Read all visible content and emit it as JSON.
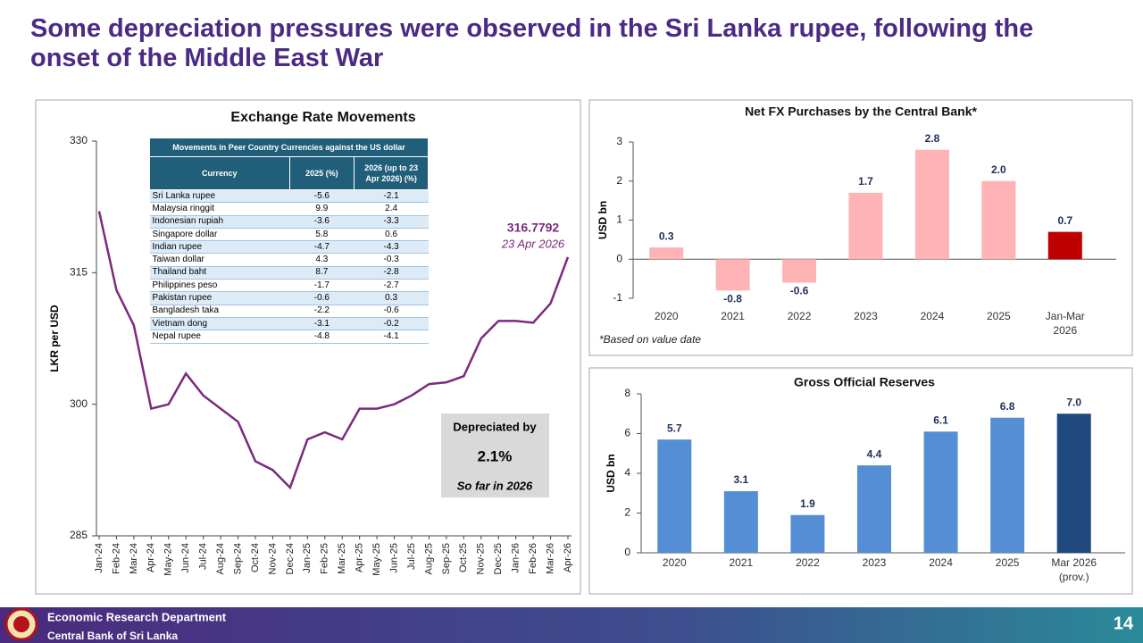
{
  "title": "Some depreciation pressures were observed in the Sri Lanka rupee, following the onset of the Middle East War",
  "footer": {
    "department": "Economic Research Department",
    "bank": "Central Bank of Sri Lanka",
    "page": "14"
  },
  "chart_data": [
    {
      "type": "line",
      "title": "Exchange Rate Movements",
      "y_label": "LKR per USD",
      "color": "#7b2a7e",
      "categories": [
        "Jan-24",
        "Feb-24",
        "Mar-24",
        "Apr-24",
        "May-24",
        "Jun-24",
        "Jul-24",
        "Aug-24",
        "Sep-24",
        "Oct-24",
        "Nov-24",
        "Dec-24",
        "Jan-25",
        "Feb-25",
        "Mar-25",
        "Apr-25",
        "May-25",
        "Jun-25",
        "Jul-25",
        "Aug-25",
        "Sep-25",
        "Oct-25",
        "Nov-25",
        "Dec-25",
        "Jan-26",
        "Feb-26",
        "Mar-26",
        "Apr-26"
      ],
      "values": [
        322,
        313,
        309,
        299.5,
        300,
        303.5,
        301,
        299.5,
        298,
        293.5,
        292.5,
        290.5,
        296,
        296.8,
        296,
        299.5,
        299.5,
        300,
        301,
        302.3,
        302.5,
        303.2,
        307.5,
        309.5,
        309.5,
        309.3,
        311.5,
        316.7792
      ],
      "ylim": [
        285,
        330
      ],
      "yticks": [
        285,
        300,
        315,
        330
      ],
      "end_label": "316.7792",
      "end_date": "23 Apr 2026",
      "callout": {
        "heading": "Depreciated by",
        "value": "2.1%",
        "note": "So far in 2026"
      },
      "table": {
        "title": "Movements in Peer Country Currencies against the US dollar",
        "columns": [
          "Currency",
          "2025 (%)",
          "2026 (up to 23 Apr 2026) (%)"
        ],
        "rows": [
          [
            "Sri Lanka rupee",
            -5.6,
            -2.1
          ],
          [
            "Malaysia ringgit",
            9.9,
            2.4
          ],
          [
            "Indonesian rupiah",
            -3.6,
            -3.3
          ],
          [
            "Singapore dollar",
            5.8,
            0.6
          ],
          [
            "Indian rupee",
            -4.7,
            -4.3
          ],
          [
            "Taiwan dollar",
            4.3,
            -0.3
          ],
          [
            "Thailand baht",
            8.7,
            -2.8
          ],
          [
            "Philippines peso",
            -1.7,
            -2.7
          ],
          [
            "Pakistan rupee",
            -0.6,
            0.3
          ],
          [
            "Bangladesh taka",
            -2.2,
            -0.6
          ],
          [
            "Vietnam dong",
            -3.1,
            -0.2
          ],
          [
            "Nepal rupee",
            -4.8,
            -4.1
          ]
        ]
      }
    },
    {
      "type": "bar",
      "title": "Net FX Purchases by the Central Bank*",
      "y_label": "USD bn",
      "note": "*Based on value date",
      "categories": [
        "2020",
        "2021",
        "2022",
        "2023",
        "2024",
        "2025",
        "Jan-Mar 2026"
      ],
      "values": [
        0.3,
        -0.8,
        -0.6,
        1.7,
        2.8,
        2.0,
        0.7
      ],
      "value_labels": [
        "0.3",
        "-0.8",
        "-0.6",
        "1.7",
        "2.8",
        "2.0",
        "0.7"
      ],
      "colors": [
        "#ffb3b5",
        "#ffb3b5",
        "#ffb3b5",
        "#ffb3b5",
        "#ffb3b5",
        "#ffb3b5",
        "#c00000"
      ],
      "ylim": [
        -1,
        3
      ],
      "yticks": [
        -1,
        0,
        1,
        2,
        3
      ]
    },
    {
      "type": "bar",
      "title": "Gross Official Reserves",
      "y_label": "USD bn",
      "categories": [
        "2020",
        "2021",
        "2022",
        "2023",
        "2024",
        "2025",
        "Mar 2026 (prov.)"
      ],
      "values": [
        5.7,
        3.1,
        1.9,
        4.4,
        6.1,
        6.8,
        7.0
      ],
      "value_labels": [
        "5.7",
        "3.1",
        "1.9",
        "4.4",
        "6.1",
        "6.8",
        "7.0"
      ],
      "colors": [
        "#558ed5",
        "#558ed5",
        "#558ed5",
        "#558ed5",
        "#558ed5",
        "#558ed5",
        "#1f497d"
      ],
      "ylim": [
        0,
        8
      ],
      "yticks": [
        0,
        2,
        4,
        6,
        8
      ]
    }
  ]
}
